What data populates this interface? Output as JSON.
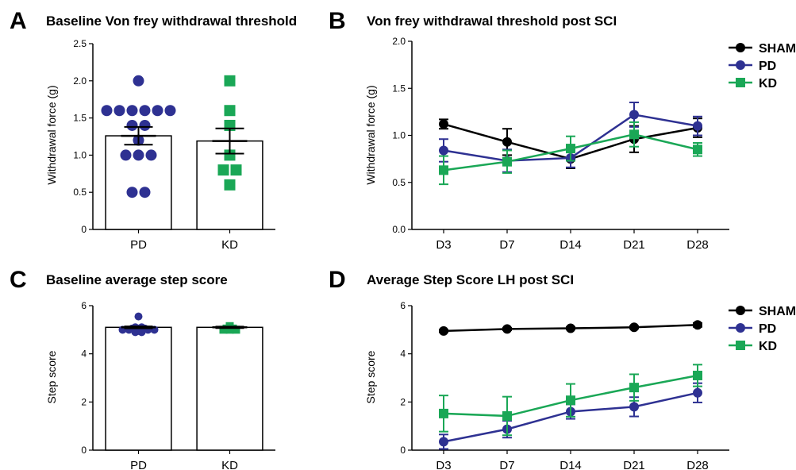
{
  "colors": {
    "sham": "#000000",
    "pd": "#2e3192",
    "kd": "#1aa756"
  },
  "chart_data": [
    {
      "panel": "A",
      "type": "bar",
      "title": "Baseline Von frey withdrawal threshold",
      "ylabel": "Withdrawal force (g)",
      "categories": [
        "PD",
        "KD"
      ],
      "ylim": [
        0,
        2.5
      ],
      "yticks": [
        0,
        0.5,
        1.0,
        1.5,
        2.0,
        2.5
      ],
      "ytick_labels": [
        "0",
        "0.5",
        "1.0",
        "1.5",
        "2.0",
        "2.5"
      ],
      "series": [
        {
          "category": "PD",
          "mean": 1.26,
          "sem": 0.12,
          "marker": "circle",
          "color": "#2e3192",
          "points": [
            2.0,
            1.6,
            1.6,
            1.6,
            1.6,
            1.6,
            1.6,
            1.4,
            1.4,
            1.2,
            1.0,
            1.0,
            1.0,
            0.5,
            0.5
          ]
        },
        {
          "category": "KD",
          "mean": 1.19,
          "sem": 0.17,
          "marker": "square",
          "color": "#1aa756",
          "points": [
            2.0,
            1.6,
            1.4,
            1.0,
            0.8,
            0.8,
            0.6
          ]
        }
      ]
    },
    {
      "panel": "B",
      "type": "line",
      "title": "Von frey withdrawal threshold post SCI",
      "ylabel": "Withdrawal force (g)",
      "categories": [
        "D3",
        "D7",
        "D14",
        "D21",
        "D28"
      ],
      "ylim": [
        0,
        2.0
      ],
      "yticks": [
        0,
        0.5,
        1.0,
        1.5,
        2.0
      ],
      "ytick_labels": [
        "0.0",
        "0.5",
        "1.0",
        "1.5",
        "2.0"
      ],
      "legend": "top-right",
      "series": [
        {
          "name": "SHAM",
          "marker": "circle",
          "color": "#000000",
          "values": [
            1.12,
            0.93,
            0.75,
            0.96,
            1.08
          ],
          "err": [
            0.05,
            0.14,
            0.1,
            0.14,
            0.1
          ]
        },
        {
          "name": "PD",
          "marker": "circle",
          "color": "#2e3192",
          "values": [
            0.84,
            0.73,
            0.76,
            1.22,
            1.1
          ],
          "err": [
            0.12,
            0.12,
            0.1,
            0.13,
            0.1
          ]
        },
        {
          "name": "KD",
          "marker": "square",
          "color": "#1aa756",
          "values": [
            0.63,
            0.72,
            0.86,
            1.01,
            0.85
          ],
          "err": [
            0.15,
            0.12,
            0.13,
            0.13,
            0.07
          ]
        }
      ]
    },
    {
      "panel": "C",
      "type": "bar",
      "title": "Baseline average step score",
      "ylabel": "Step score",
      "categories": [
        "PD",
        "KD"
      ],
      "ylim": [
        0,
        6
      ],
      "yticks": [
        0,
        2,
        4,
        6
      ],
      "ytick_labels": [
        "0",
        "2",
        "4",
        "6"
      ],
      "series": [
        {
          "category": "PD",
          "mean": 5.1,
          "sem": 0.04,
          "marker": "circle",
          "color": "#2e3192",
          "points": [
            5.55,
            5.1,
            5.1,
            5.05,
            5.05,
            5.05,
            5.0,
            5.0,
            5.0,
            5.0,
            5.0,
            5.0,
            4.95,
            4.9,
            4.9
          ]
        },
        {
          "category": "KD",
          "mean": 5.1,
          "sem": 0.03,
          "marker": "square",
          "color": "#1aa756",
          "points": [
            5.15,
            5.1,
            5.05,
            5.05,
            5.0,
            5.0,
            5.0
          ]
        }
      ]
    },
    {
      "panel": "D",
      "type": "line",
      "title": "Average Step Score LH post SCI",
      "ylabel": "Step score",
      "categories": [
        "D3",
        "D7",
        "D14",
        "D21",
        "D28"
      ],
      "ylim": [
        0,
        6
      ],
      "yticks": [
        0,
        2,
        4,
        6
      ],
      "ytick_labels": [
        "0",
        "2",
        "4",
        "6"
      ],
      "legend": "top-right",
      "series": [
        {
          "name": "SHAM",
          "marker": "circle",
          "color": "#000000",
          "values": [
            4.95,
            5.03,
            5.06,
            5.1,
            5.2
          ],
          "err": [
            0.05,
            0.05,
            0.05,
            0.05,
            0.08
          ]
        },
        {
          "name": "PD",
          "marker": "circle",
          "color": "#2e3192",
          "values": [
            0.35,
            0.87,
            1.6,
            1.8,
            2.38
          ],
          "err": [
            0.3,
            0.35,
            0.3,
            0.4,
            0.4
          ]
        },
        {
          "name": "KD",
          "marker": "square",
          "color": "#1aa756",
          "values": [
            1.52,
            1.42,
            2.07,
            2.6,
            3.1
          ],
          "err": [
            0.75,
            0.8,
            0.68,
            0.55,
            0.45
          ]
        }
      ]
    }
  ]
}
